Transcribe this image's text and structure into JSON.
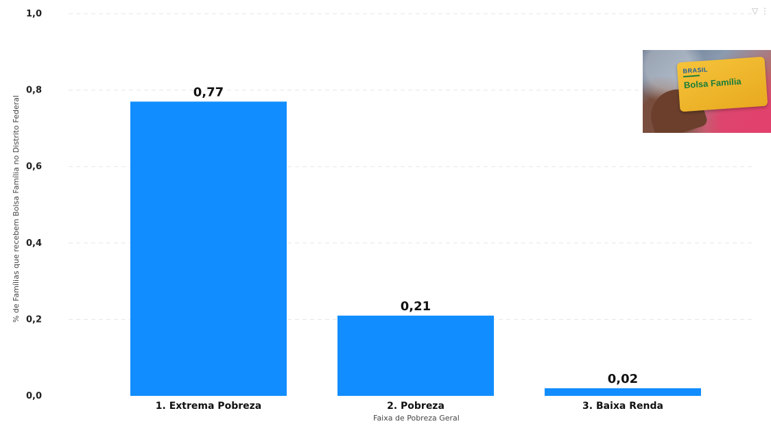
{
  "chart_data": {
    "type": "bar",
    "categories": [
      "1. Extrema Pobreza",
      "2. Pobreza",
      "3. Baixa Renda"
    ],
    "values": [
      0.77,
      0.21,
      0.02
    ],
    "data_labels": [
      "0,77",
      "0,21",
      "0,02"
    ],
    "xlabel": "Faixa de Pobreza Geral",
    "ylabel": "% de Famílias que recebem Bolsa Família no Distrito Federal",
    "ylim": [
      0,
      1
    ],
    "yticks": [
      0,
      0.2,
      0.4,
      0.6,
      0.8,
      1.0
    ],
    "ytick_labels": [
      "0,0",
      "0,2",
      "0,4",
      "0,6",
      "0,8",
      "1,0"
    ],
    "grid": true,
    "bar_color": "#118dff",
    "grid_color": "#e6e6e6"
  },
  "image": {
    "brand_small": "BRASIL",
    "brand_big": "Bolsa Família"
  },
  "icons": {
    "filter": "filter-icon"
  }
}
